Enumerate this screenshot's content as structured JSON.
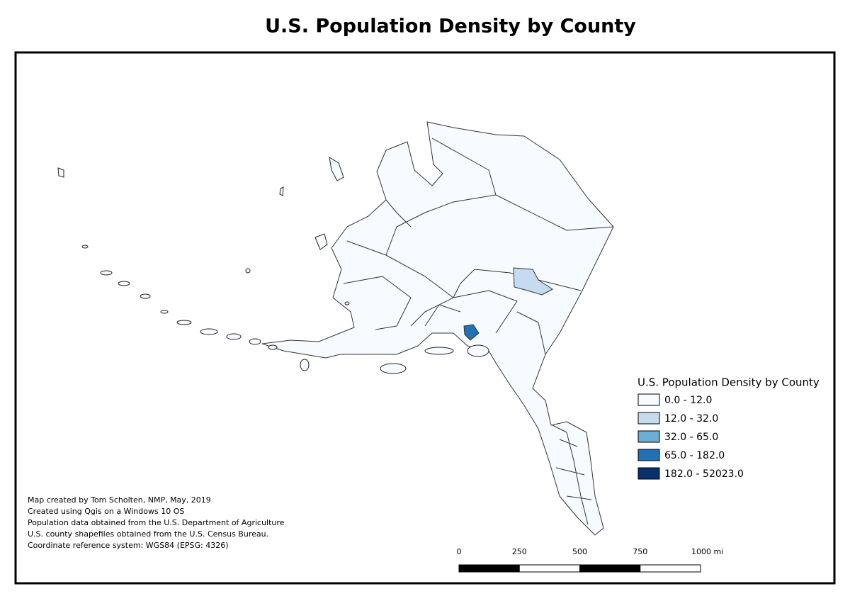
{
  "title": "U.S. Population Density by County",
  "legend": {
    "title": "U.S. Population Density by County",
    "items": [
      {
        "label": "0.0 - 12.0",
        "color": "#f7fbff"
      },
      {
        "label": "12.0 - 32.0",
        "color": "#c6dbef"
      },
      {
        "label": "32.0 - 65.0",
        "color": "#6baed6"
      },
      {
        "label": "65.0 - 182.0",
        "color": "#2171b5"
      },
      {
        "label": "182.0 - 52023.0",
        "color": "#08306b"
      }
    ]
  },
  "credits": [
    "Map created by Tom Scholten, NMP, May, 2019",
    "Created using Qgis on a Windows 10 OS",
    "Population data obtained from the U.S. Department of Agriculture",
    "U.S. county shapefiles obtained from the U.S. Census Bureau.",
    "Coordinate reference system: WGS84 (EPSG: 4326)"
  ],
  "scale_bar": {
    "labels": [
      "0",
      "250",
      "500",
      "750",
      "1000 mi"
    ]
  }
}
